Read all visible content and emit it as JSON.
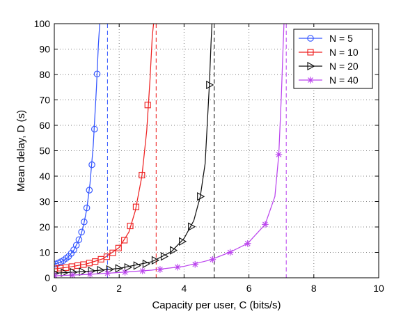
{
  "chart_data": {
    "type": "line",
    "title": "",
    "xlabel": "Capacity per user, C (bits/s)",
    "ylabel": "Mean delay, D (s)",
    "xlim": [
      0,
      10
    ],
    "ylim": [
      0,
      100
    ],
    "xticks": [
      0,
      2,
      4,
      6,
      8,
      10
    ],
    "yticks": [
      0,
      10,
      20,
      30,
      40,
      50,
      60,
      70,
      80,
      90,
      100
    ],
    "grid": true,
    "legend_position": "top-right",
    "series": [
      {
        "name": "N = 5",
        "color": "#3355ff",
        "marker": "circle",
        "marker_points": [
          [
            0.04,
            5.4
          ],
          [
            0.12,
            5.8
          ],
          [
            0.2,
            6.3
          ],
          [
            0.28,
            6.8
          ],
          [
            0.36,
            7.6
          ],
          [
            0.44,
            8.4
          ],
          [
            0.52,
            9.6
          ],
          [
            0.6,
            11.0
          ],
          [
            0.68,
            12.8
          ],
          [
            0.76,
            15.0
          ],
          [
            0.84,
            18.0
          ],
          [
            0.92,
            22.0
          ],
          [
            1.0,
            27.5
          ],
          [
            1.08,
            34.5
          ],
          [
            1.16,
            44.5
          ],
          [
            1.24,
            58.5
          ],
          [
            1.32,
            80.2
          ]
        ],
        "curve": [
          [
            0,
            5.3
          ],
          [
            0.2,
            6.2
          ],
          [
            0.4,
            7.8
          ],
          [
            0.6,
            10.8
          ],
          [
            0.8,
            16.0
          ],
          [
            0.9,
            20.5
          ],
          [
            1.0,
            27.0
          ],
          [
            1.1,
            37.0
          ],
          [
            1.2,
            52.0
          ],
          [
            1.3,
            75.0
          ],
          [
            1.36,
            92.0
          ],
          [
            1.4,
            100
          ]
        ],
        "asymptote": 1.64
      },
      {
        "name": "N = 10",
        "color": "#ee2222",
        "marker": "square",
        "marker_points": [
          [
            0.02,
            3.6
          ],
          [
            0.18,
            3.8
          ],
          [
            0.36,
            4.0
          ],
          [
            0.54,
            4.4
          ],
          [
            0.72,
            4.8
          ],
          [
            0.9,
            5.2
          ],
          [
            1.08,
            5.8
          ],
          [
            1.26,
            6.4
          ],
          [
            1.44,
            7.3
          ],
          [
            1.62,
            8.3
          ],
          [
            1.8,
            9.8
          ],
          [
            1.98,
            11.7
          ],
          [
            2.16,
            14.8
          ],
          [
            2.34,
            20.4
          ],
          [
            2.52,
            27.9
          ],
          [
            2.7,
            40.4
          ],
          [
            2.88,
            68.0
          ]
        ],
        "curve": [
          [
            0,
            3.5
          ],
          [
            0.5,
            4.3
          ],
          [
            1.0,
            5.5
          ],
          [
            1.5,
            7.5
          ],
          [
            2.0,
            11.9
          ],
          [
            2.3,
            18.0
          ],
          [
            2.5,
            26.5
          ],
          [
            2.7,
            40.0
          ],
          [
            2.85,
            58.0
          ],
          [
            2.95,
            78.0
          ],
          [
            3.02,
            95.0
          ],
          [
            3.06,
            100
          ]
        ],
        "asymptote": 3.14
      },
      {
        "name": "N = 20",
        "color": "#111111",
        "marker": "triangle-right",
        "marker_points": [
          [
            0.02,
            1.8
          ],
          [
            0.3,
            2.0
          ],
          [
            0.58,
            2.2
          ],
          [
            0.86,
            2.4
          ],
          [
            1.14,
            2.7
          ],
          [
            1.42,
            3.0
          ],
          [
            1.7,
            3.3
          ],
          [
            1.98,
            3.7
          ],
          [
            2.26,
            4.1
          ],
          [
            2.54,
            4.8
          ],
          [
            2.82,
            5.5
          ],
          [
            3.1,
            6.9
          ],
          [
            3.38,
            8.4
          ],
          [
            3.66,
            10.8
          ],
          [
            3.94,
            14.3
          ],
          [
            4.22,
            20.1
          ],
          [
            4.5,
            32.0
          ],
          [
            4.78,
            75.9
          ]
        ],
        "curve": [
          [
            0,
            1.8
          ],
          [
            1.0,
            2.5
          ],
          [
            2.0,
            3.7
          ],
          [
            3.0,
            6.3
          ],
          [
            3.6,
            10.2
          ],
          [
            4.0,
            15.5
          ],
          [
            4.3,
            22.5
          ],
          [
            4.5,
            32.0
          ],
          [
            4.65,
            45.0
          ],
          [
            4.78,
            75.9
          ],
          [
            4.83,
            92.0
          ],
          [
            4.86,
            100
          ]
        ],
        "asymptote": 4.93
      },
      {
        "name": "N = 40",
        "color": "#bb44ee",
        "marker": "asterisk",
        "marker_points": [
          [
            0.02,
            0.8
          ],
          [
            0.56,
            1.1
          ],
          [
            1.1,
            1.4
          ],
          [
            1.64,
            1.8
          ],
          [
            2.18,
            2.2
          ],
          [
            2.72,
            2.7
          ],
          [
            3.26,
            3.3
          ],
          [
            3.8,
            4.2
          ],
          [
            4.34,
            5.3
          ],
          [
            4.88,
            7.2
          ],
          [
            5.42,
            10.0
          ],
          [
            5.96,
            13.5
          ],
          [
            6.5,
            21.0
          ],
          [
            6.92,
            48.5
          ]
        ],
        "curve": [
          [
            0,
            0.8
          ],
          [
            1.0,
            1.3
          ],
          [
            2.0,
            2.1
          ],
          [
            3.0,
            3.0
          ],
          [
            4.0,
            4.5
          ],
          [
            4.8,
            7.0
          ],
          [
            5.4,
            10.0
          ],
          [
            5.96,
            13.5
          ],
          [
            6.5,
            21.0
          ],
          [
            6.8,
            32.0
          ],
          [
            6.92,
            48.5
          ],
          [
            7.0,
            72.0
          ],
          [
            7.05,
            90.0
          ],
          [
            7.08,
            100
          ]
        ],
        "asymptote": 7.15
      }
    ]
  }
}
